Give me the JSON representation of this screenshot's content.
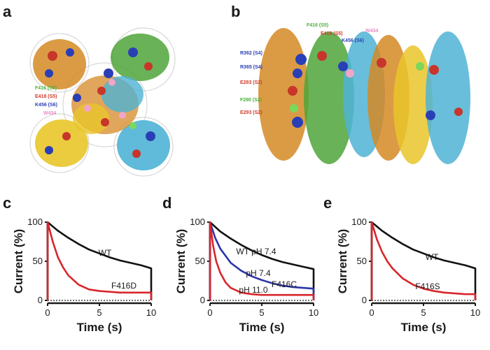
{
  "panels": [
    "a",
    "b",
    "c",
    "d",
    "e"
  ],
  "structure_labels": {
    "a": [
      {
        "text": "F416 (S5)",
        "color": "#4caf3a"
      },
      {
        "text": "E418 (S5)",
        "color": "#d23a2a"
      },
      {
        "text": "K456 (S6)",
        "color": "#2a3fb5"
      },
      {
        "text": "W434",
        "color": "#e889c1"
      }
    ],
    "b_top": [
      {
        "text": "F416 (S5)",
        "color": "#4caf3a"
      },
      {
        "text": "E418 (S5)",
        "color": "#d23a2a"
      },
      {
        "text": "W434",
        "color": "#e889c1"
      },
      {
        "text": "K456 (S6)",
        "color": "#2a3fb5"
      }
    ],
    "b_left": [
      {
        "text": "R362 (S4)",
        "color": "#2a3fb5"
      },
      {
        "text": "R365 (S4)",
        "color": "#2a3fb5"
      },
      {
        "text": "E283 (S2)",
        "color": "#d23a2a"
      },
      {
        "text": "F290 (S2)",
        "color": "#4caf3a"
      },
      {
        "text": "E293 (S2)",
        "color": "#d23a2a"
      }
    ]
  },
  "chart_data": [
    {
      "panel": "c",
      "type": "line",
      "xlabel": "Time (s)",
      "ylabel": "Current  (%)",
      "xlim": [
        0,
        10
      ],
      "ylim": [
        0,
        100
      ],
      "xticks": [
        "0",
        "5",
        "10"
      ],
      "yticks": [
        "0",
        "50",
        "100"
      ],
      "series": [
        {
          "name": "WT",
          "color": "#111111",
          "x": [
            0,
            1,
            2,
            3,
            4,
            5,
            6,
            7,
            8,
            9,
            10
          ],
          "y": [
            100,
            89,
            80,
            72,
            65,
            60,
            55,
            51,
            48,
            45,
            41
          ]
        },
        {
          "name": "F416D",
          "color": "#d7262b",
          "x": [
            0,
            0.5,
            1,
            1.5,
            2,
            3,
            4,
            5,
            6,
            7,
            8,
            9,
            10
          ],
          "y": [
            100,
            75,
            55,
            42,
            32,
            20,
            14,
            12,
            11,
            10,
            10,
            10,
            10
          ]
        }
      ]
    },
    {
      "panel": "d",
      "type": "line",
      "xlabel": "Time (s)",
      "ylabel": "Current  (%)",
      "xlim": [
        0,
        10
      ],
      "ylim": [
        0,
        100
      ],
      "xticks": [
        "0",
        "5",
        "10"
      ],
      "yticks": [
        "0",
        "50",
        "100"
      ],
      "series": [
        {
          "name": "WT pH 7.4",
          "color": "#111111",
          "x": [
            0,
            1,
            2,
            3,
            4,
            5,
            6,
            7,
            8,
            9,
            10
          ],
          "y": [
            100,
            88,
            79,
            71,
            64,
            58,
            53,
            49,
            46,
            43,
            40
          ]
        },
        {
          "name": "F416C pH 7.4",
          "color": "#2b35a8",
          "x": [
            0,
            0.5,
            1,
            2,
            3,
            4,
            5,
            6,
            7,
            8,
            9,
            10
          ],
          "y": [
            100,
            80,
            66,
            48,
            38,
            31,
            26,
            22,
            19,
            17,
            16,
            15
          ]
        },
        {
          "name": "F416C pH 11.0",
          "color": "#d7262b",
          "x": [
            0,
            0.3,
            0.6,
            1,
            1.5,
            2,
            3,
            4,
            5,
            6,
            8,
            10
          ],
          "y": [
            100,
            70,
            50,
            35,
            23,
            16,
            10,
            8,
            7,
            7,
            7,
            7
          ]
        }
      ],
      "annotations": [
        "WT pH 7.4",
        "pH 7.4",
        "F416C",
        "pH 11.0"
      ]
    },
    {
      "panel": "e",
      "type": "line",
      "xlabel": "Time (s)",
      "ylabel": "Current  (%)",
      "xlim": [
        0,
        10
      ],
      "ylim": [
        0,
        100
      ],
      "xticks": [
        "0",
        "5",
        "10"
      ],
      "yticks": [
        "0",
        "50",
        "100"
      ],
      "series": [
        {
          "name": "WT",
          "color": "#111111",
          "x": [
            0,
            1,
            2,
            3,
            4,
            5,
            6,
            7,
            8,
            9,
            10
          ],
          "y": [
            100,
            89,
            80,
            72,
            65,
            60,
            55,
            51,
            48,
            45,
            41
          ]
        },
        {
          "name": "F416S",
          "color": "#d7262b",
          "x": [
            0,
            0.5,
            1,
            1.5,
            2,
            3,
            4,
            5,
            6,
            7,
            8,
            9,
            10
          ],
          "y": [
            100,
            78,
            62,
            50,
            41,
            28,
            20,
            15,
            12,
            10,
            9,
            8,
            8
          ]
        }
      ]
    }
  ]
}
